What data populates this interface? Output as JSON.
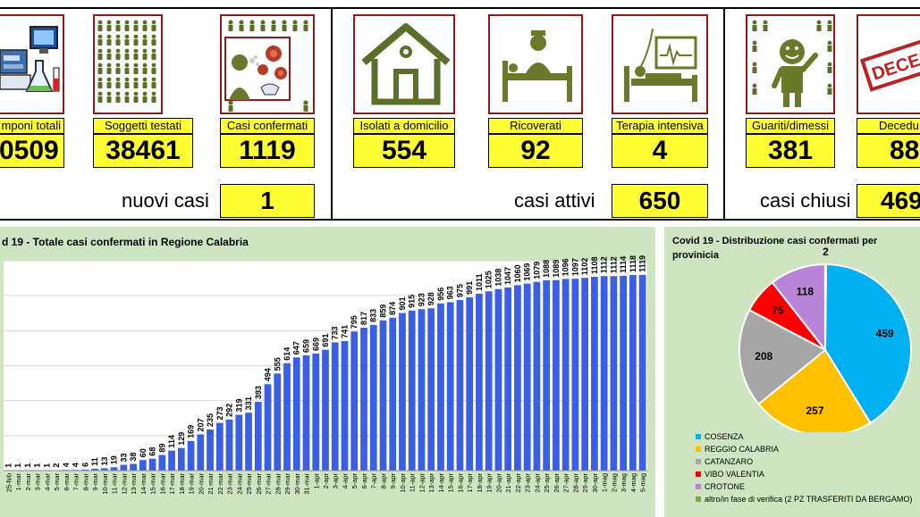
{
  "tiles": [
    {
      "key": "tamponi",
      "label": "mponi totali",
      "value": "0509"
    },
    {
      "key": "testati",
      "label": "Soggetti testati",
      "value": "38461"
    },
    {
      "key": "confermati",
      "label": "Casi confermati",
      "value": "1119"
    },
    {
      "key": "isolati",
      "label": "Isolati a domicilio",
      "value": "554"
    },
    {
      "key": "ricoverati",
      "label": "Ricoverati",
      "value": "92"
    },
    {
      "key": "terapia",
      "label": "Terapia intensiva",
      "value": "4"
    },
    {
      "key": "guariti",
      "label": "Guariti/dimessi",
      "value": "381"
    },
    {
      "key": "deceduti",
      "label": "Decedu",
      "value": "88"
    }
  ],
  "summary": {
    "nuovi_label": "nuovi casi",
    "nuovi_value": "1",
    "attivi_label": "casi attivi",
    "attivi_value": "650",
    "chiusi_label": "casi chiusi",
    "chiusi_value": "469"
  },
  "stamp_text": "DECESSI",
  "chart_data": [
    {
      "type": "bar",
      "title": "d 19 - Totale casi confermati in Regione Calabria",
      "color": "#3a5fe5",
      "categories": [
        "25-feb",
        "1-mar",
        "2-mar",
        "3-mar",
        "4-mar",
        "5-mar",
        "6-mar",
        "7-mar",
        "8-mar",
        "9-mar",
        "10-mar",
        "11-mar",
        "12-mar",
        "13-mar",
        "14-mar",
        "15-mar",
        "16-mar",
        "17-mar",
        "18-mar",
        "19-mar",
        "20-mar",
        "21-mar",
        "22-mar",
        "23-mar",
        "24-mar",
        "25-mar",
        "26-mar",
        "27-mar",
        "28-mar",
        "29-mar",
        "30-mar",
        "31-mar",
        "1-apr",
        "2-apr",
        "3-apr",
        "4-apr",
        "5-apr",
        "6-apr",
        "7-apr",
        "8-apr",
        "9-apr",
        "10-apr",
        "11-apr",
        "12-apr",
        "13-apr",
        "14-apr",
        "15-apr",
        "16-apr",
        "17-apr",
        "18-apr",
        "19-apr",
        "20-apr",
        "21-apr",
        "22-apr",
        "23-apr",
        "24-apr",
        "25-apr",
        "26-apr",
        "27-apr",
        "28-apr",
        "29-apr",
        "30-apr",
        "1-mag",
        "2-mag",
        "3-mag",
        "4-mag",
        "5-mag"
      ],
      "values": [
        1,
        1,
        1,
        1,
        1,
        2,
        4,
        4,
        6,
        11,
        13,
        19,
        33,
        38,
        60,
        68,
        89,
        114,
        129,
        169,
        207,
        235,
        273,
        292,
        319,
        331,
        393,
        494,
        555,
        614,
        647,
        659,
        669,
        691,
        733,
        741,
        795,
        817,
        833,
        859,
        874,
        901,
        915,
        923,
        928,
        956,
        963,
        975,
        991,
        1011,
        1025,
        1038,
        1047,
        1060,
        1069,
        1079,
        1088,
        1089,
        1096,
        1097,
        1102,
        1108,
        1112,
        1112,
        1114,
        1118,
        1119
      ],
      "ylim": [
        0,
        1200
      ]
    },
    {
      "type": "pie",
      "title": "Covid 19 - Distribuzione casi confermati per provinicia",
      "slices": [
        {
          "name": "COSENZA",
          "value": 459,
          "color": "#00b0f0"
        },
        {
          "name": "REGGIO CALABRIA",
          "value": 257,
          "color": "#ffc000"
        },
        {
          "name": "CATANZARO",
          "value": 208,
          "color": "#a6a6a6"
        },
        {
          "name": "VIBO VALENTIA",
          "value": 75,
          "color": "#ff0000"
        },
        {
          "name": "CROTONE",
          "value": 118,
          "color": "#b784d8"
        },
        {
          "name": "altro/in fase di verifica (2 PZ TRASFERITI DA BERGAMO)",
          "value": 2,
          "color": "#70ad47"
        }
      ]
    }
  ]
}
